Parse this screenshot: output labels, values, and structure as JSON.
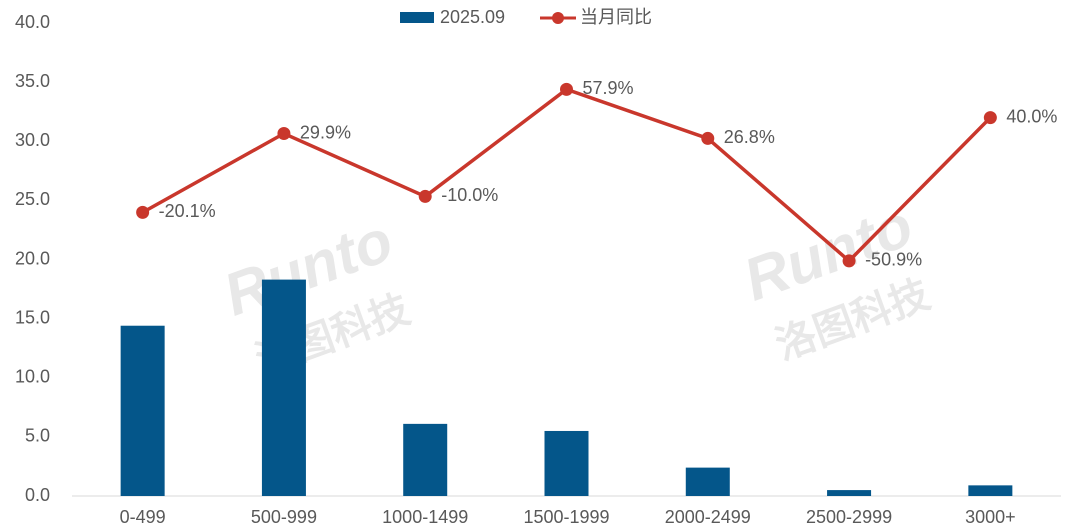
{
  "chart_data": {
    "type": "bar_line",
    "categories": [
      "0-499",
      "500-999",
      "1000-1499",
      "1500-1999",
      "2000-2499",
      "2500-2999",
      "3000+"
    ],
    "series": [
      {
        "name": "2025.09",
        "type": "bar",
        "color": "#04568a",
        "values": [
          14.4,
          18.3,
          6.1,
          5.5,
          2.4,
          0.5,
          0.9
        ]
      },
      {
        "name": "当月同比",
        "type": "line",
        "axis": "y2",
        "color": "#c9372c",
        "values": [
          -20.1,
          29.9,
          -10.0,
          57.9,
          26.8,
          -50.9,
          40.0
        ],
        "value_labels": [
          "-20.1%",
          "29.9%",
          "-10.0%",
          "57.9%",
          "26.8%",
          "-50.9%",
          "40.0%"
        ]
      }
    ],
    "ylim": [
      0,
      40
    ],
    "yticks": [
      {
        "value": 0,
        "label": "0.0"
      },
      {
        "value": 5,
        "label": "5.0"
      },
      {
        "value": 10,
        "label": "10.0"
      },
      {
        "value": 15,
        "label": "15.0"
      },
      {
        "value": 20,
        "label": "20.0"
      },
      {
        "value": 25,
        "label": "25.0"
      },
      {
        "value": 30,
        "label": "30.0"
      },
      {
        "value": 35,
        "label": "35.0"
      },
      {
        "value": 40,
        "label": "40.0"
      }
    ],
    "y2lim": [
      -200,
      100
    ],
    "legend": "top",
    "watermark": [
      "Runto",
      "洛图科技"
    ]
  }
}
